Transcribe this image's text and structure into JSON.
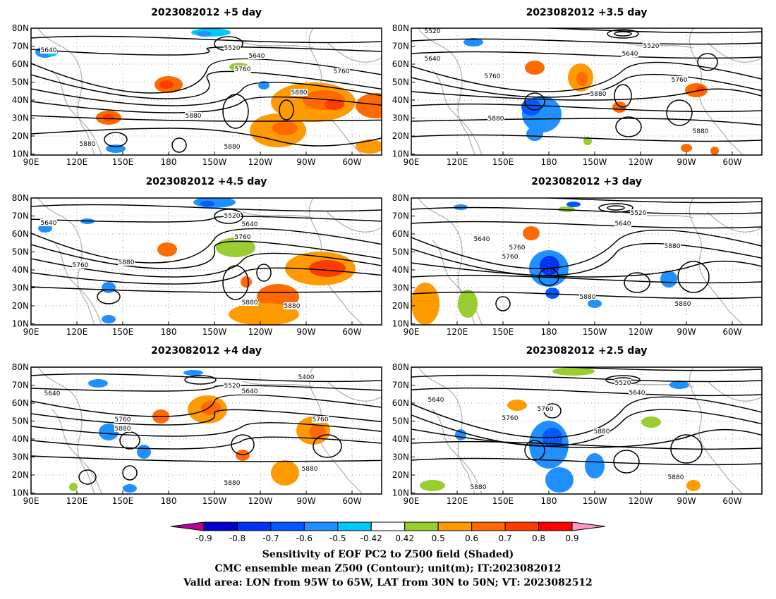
{
  "panels": [
    {
      "title": "2023082012  +5 day"
    },
    {
      "title": "2023082012  +3.5 day"
    },
    {
      "title": "2023082012  +4.5 day"
    },
    {
      "title": "2023082012  +3 day"
    },
    {
      "title": "2023082012  +4 day"
    },
    {
      "title": "2023082012  +2.5 day"
    }
  ],
  "axes": {
    "lat_labels": [
      "80N",
      "70N",
      "60N",
      "50N",
      "40N",
      "30N",
      "20N",
      "10N"
    ],
    "lon_labels": [
      "90E",
      "120E",
      "150E",
      "180",
      "150W",
      "120W",
      "90W",
      "60W"
    ]
  },
  "contour_labels": [
    [
      "5640",
      "5520",
      "5640",
      "5760",
      "5760",
      "5880",
      "5880",
      "5880",
      "5880"
    ],
    [
      "5520",
      "5640",
      "5520",
      "5640",
      "5760",
      "5880",
      "5760",
      "5880",
      "5880"
    ],
    [
      "5640",
      "5520",
      "5640",
      "5760",
      "5760",
      "5880",
      "5880",
      "5880"
    ],
    [
      "5520",
      "5640",
      "5640",
      "5760",
      "5880",
      "5760",
      "5880",
      "5880"
    ],
    [
      "5640",
      "5520",
      "5640",
      "5400",
      "5760",
      "5880",
      "5760",
      "5880",
      "5880"
    ],
    [
      "5520",
      "5640",
      "5640",
      "5760",
      "5760",
      "5880",
      "5880",
      "5880"
    ]
  ],
  "colorbar": {
    "labels": [
      "-0.9",
      "-0.8",
      "-0.7",
      "-0.6",
      "-0.5",
      "-0.42",
      "0.42",
      "0.5",
      "0.6",
      "0.7",
      "0.8",
      "0.9"
    ],
    "colors": [
      "#b80098",
      "#0000c8",
      "#0032f0",
      "#0058ff",
      "#1e90ff",
      "#00c8f8",
      "#ffffff",
      "#9acd32",
      "#ff9b00",
      "#ff6a00",
      "#ff3c00",
      "#ff0000",
      "#ff9ac8"
    ]
  },
  "footer": {
    "line1": "Sensitivity of EOF PC2 to Z500 field (Shaded)",
    "line2": "CMC ensemble mean Z500 (Contour); unit(m); IT:2023082012",
    "line3": "Valid area: LON from 95W to 65W, LAT from 30N to 50N; VT: 2023082512"
  }
}
